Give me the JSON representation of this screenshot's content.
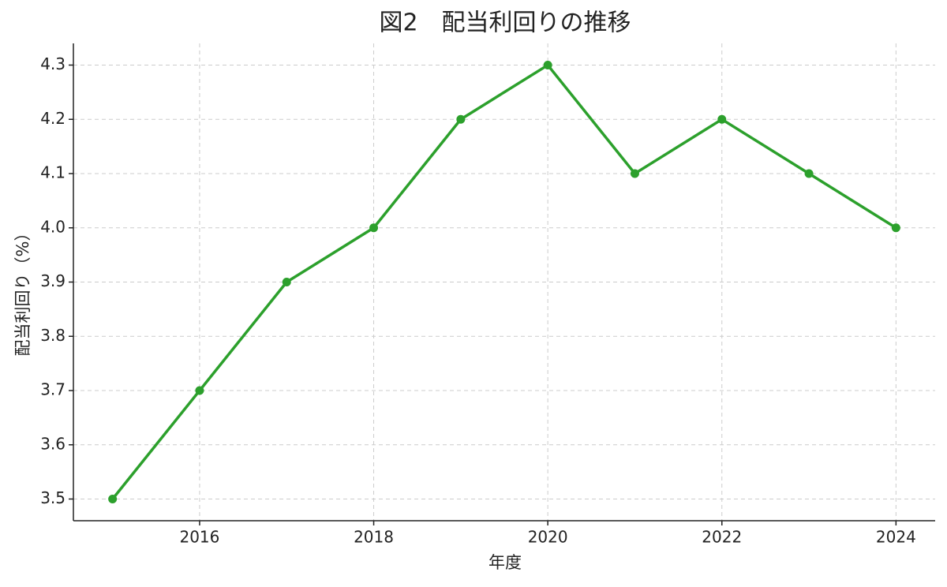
{
  "chart_data": {
    "type": "line",
    "title": "図2　配当利回りの推移",
    "x_label": "年度",
    "y_label": "配当利回り（%）",
    "x": [
      2015,
      2016,
      2017,
      2018,
      2019,
      2020,
      2021,
      2022,
      2023,
      2024
    ],
    "series": [
      {
        "name": "配当利回り",
        "color": "#2ca02c",
        "values": [
          3.5,
          3.7,
          3.9,
          4.0,
          4.2,
          4.3,
          4.1,
          4.2,
          4.1,
          4.0
        ]
      }
    ],
    "xlim": [
      2014.55,
      2024.45
    ],
    "xticks": [
      2016,
      2018,
      2020,
      2022,
      2024
    ],
    "ylim": [
      3.46,
      4.34
    ],
    "yticks": [
      3.5,
      3.6,
      3.7,
      3.8,
      3.9,
      {
        "value": 4,
        "label": "4.0"
      },
      4.1,
      4.2,
      4.3
    ],
    "grid": true
  }
}
